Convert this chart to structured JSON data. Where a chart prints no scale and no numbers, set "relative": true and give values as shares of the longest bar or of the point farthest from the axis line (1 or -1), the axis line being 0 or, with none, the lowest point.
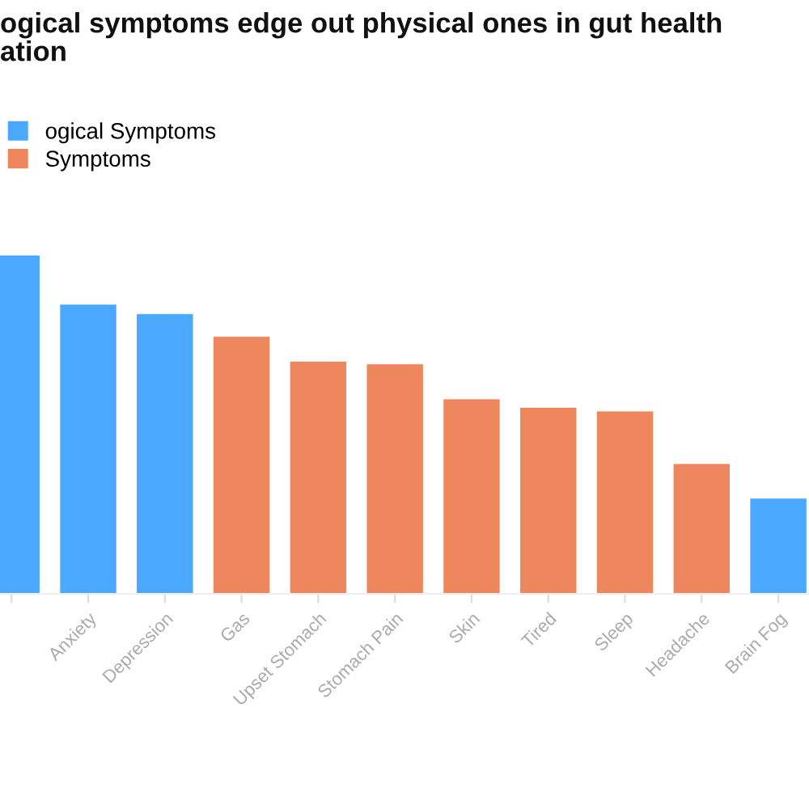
{
  "chart_data": {
    "type": "bar",
    "title": "ogical symptoms edge out physical ones in gut health\nation",
    "categories": [
      null,
      "Anxiety",
      "Depression",
      "Gas",
      "Upset Stomach",
      "Stomach Pain",
      "Skin",
      "Tired",
      "Sleep",
      "Headache",
      "Brain Fog"
    ],
    "series": [
      {
        "name": "ogical Symptoms",
        "color": "#4ba8ff",
        "values": [
          1,
          0.855,
          0.827,
          null,
          null,
          null,
          null,
          null,
          null,
          null,
          0.283
        ]
      },
      {
        "name": "Symptoms",
        "color": "#ee875e",
        "values": [
          null,
          null,
          null,
          0.76,
          0.687,
          0.679,
          0.576,
          0.551,
          0.54,
          0.385,
          null
        ]
      }
    ],
    "relative": true,
    "legend": "top left"
  }
}
